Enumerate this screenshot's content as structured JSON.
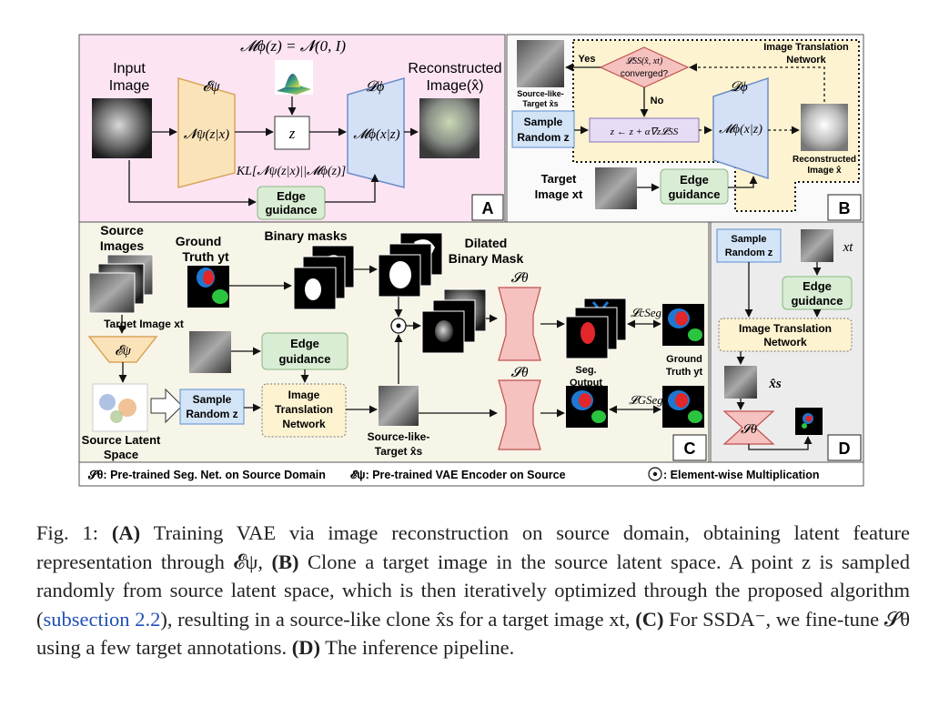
{
  "panel_a": {
    "tag": "A",
    "prior_formula": "𝓜ϕ(z) = 𝓝(0, I)",
    "input_label_1": "Input",
    "input_label_2": "Image",
    "encoder_symbol": "𝓔ψ",
    "encoder_formula": "𝓝ψ(z|x)",
    "latent": "z",
    "decoder_symbol": "𝓓ϕ",
    "decoder_formula": "𝓜ϕ(x|z)",
    "output_label_1": "Reconstructed",
    "output_label_2": "Image(x̂)",
    "kl_formula": "KL[𝓝ψ(z|x)||𝓜ϕ(z)]",
    "edge_1": "Edge",
    "edge_2": "guidance"
  },
  "panel_b": {
    "tag": "B",
    "network_label_1": "Image Translation",
    "network_label_2": "Network",
    "decision_1": "𝓛SS(x̂, xt)",
    "decision_2": "converged?",
    "yes": "Yes",
    "no": "No",
    "clone_label_1": "Source-like-",
    "clone_label_2": "Target x̂s",
    "sample_1": "Sample",
    "sample_2": "Random z",
    "update": "z ← z + α∇z𝓛SS",
    "decoder_symbol": "𝓓ϕ",
    "decoder_formula": "𝓜ϕ(x|z)",
    "recon_1": "Reconstructed",
    "recon_2": "Image x̂",
    "target_1": "Target",
    "target_2": "Image xt",
    "edge_1": "Edge",
    "edge_2": "guidance"
  },
  "panel_c": {
    "tag": "C",
    "source_1": "Source",
    "source_2": "Images",
    "gt_1": "Ground",
    "gt_2": "Truth yt",
    "binary_masks": "Binary masks",
    "dilated_1": "Dilated",
    "dilated_2": "Binary Mask",
    "target_image": "Target Image xt",
    "encoder_symbol": "𝓔ψ",
    "edge_1": "Edge",
    "edge_2": "guidance",
    "latent_1": "Source Latent",
    "latent_2": "Space",
    "sample_1": "Sample",
    "sample_2": "Random z",
    "itn_1": "Image",
    "itn_2": "Translation",
    "itn_3": "Network",
    "seg_symbol_top": "𝓢θ",
    "seg_symbol_bottom": "𝓢θ",
    "loss_c": "𝓛cSeg",
    "loss_g": "𝓛GSeg",
    "seg_output_1": "Seg.",
    "seg_output_2": "Output",
    "gt2_1": "Ground",
    "gt2_2": "Truth yt",
    "clone_1": "Source-like-",
    "clone_2": "Target x̂s"
  },
  "panel_d": {
    "tag": "D",
    "sample_1": "Sample",
    "sample_2": "Random z",
    "target": "xt",
    "edge_1": "Edge",
    "edge_2": "guidance",
    "itn_1": "Image Translation",
    "itn_2": "Network",
    "clone": "x̂s",
    "seg_symbol": "𝓢θ"
  },
  "legend": {
    "seg_net": "𝓢θ: Pre-trained Seg. Net. on Source Domain",
    "vae_enc": "𝓔ψ: Pre-trained VAE Encoder on Source",
    "mult": ": Element-wise Multiplication"
  },
  "caption": {
    "fig": "Fig. 1:",
    "a_tag": "(A)",
    "a_text": " Training VAE via image reconstruction on source domain, obtaining latent feature representation through 𝓔ψ, ",
    "b_tag": "(B)",
    "b_text": " Clone a target image in the source latent space. A point z is sampled randomly from source latent space, which is then iteratively optimized through the proposed algorithm (",
    "link": "subsection 2.2",
    "b_text2": "), resulting in a source-like clone x̂s for a target image xt, ",
    "c_tag": "(C)",
    "c_text": " For SSDA⁻, we fine-tune 𝓢θ using a few target annotations. ",
    "d_tag": "(D)",
    "d_text": " The inference pipeline."
  },
  "colors": {
    "panel_a_bg": "#fce4f3",
    "panel_c_bg": "#f7f4e8",
    "panel_d_bg": "#ececec",
    "encoder": "#fbe3b9",
    "decoder": "#d4e0f6",
    "edge_box": "#d9ecd4",
    "sample_box": "#d3e4f7",
    "itn_box": "#fdf3d0",
    "update_box": "#e6dcf3",
    "seg_net": "#f5c2c0",
    "mask_red": "#e3262a",
    "mask_blue": "#1e78d2",
    "mask_green": "#2bc43e"
  }
}
